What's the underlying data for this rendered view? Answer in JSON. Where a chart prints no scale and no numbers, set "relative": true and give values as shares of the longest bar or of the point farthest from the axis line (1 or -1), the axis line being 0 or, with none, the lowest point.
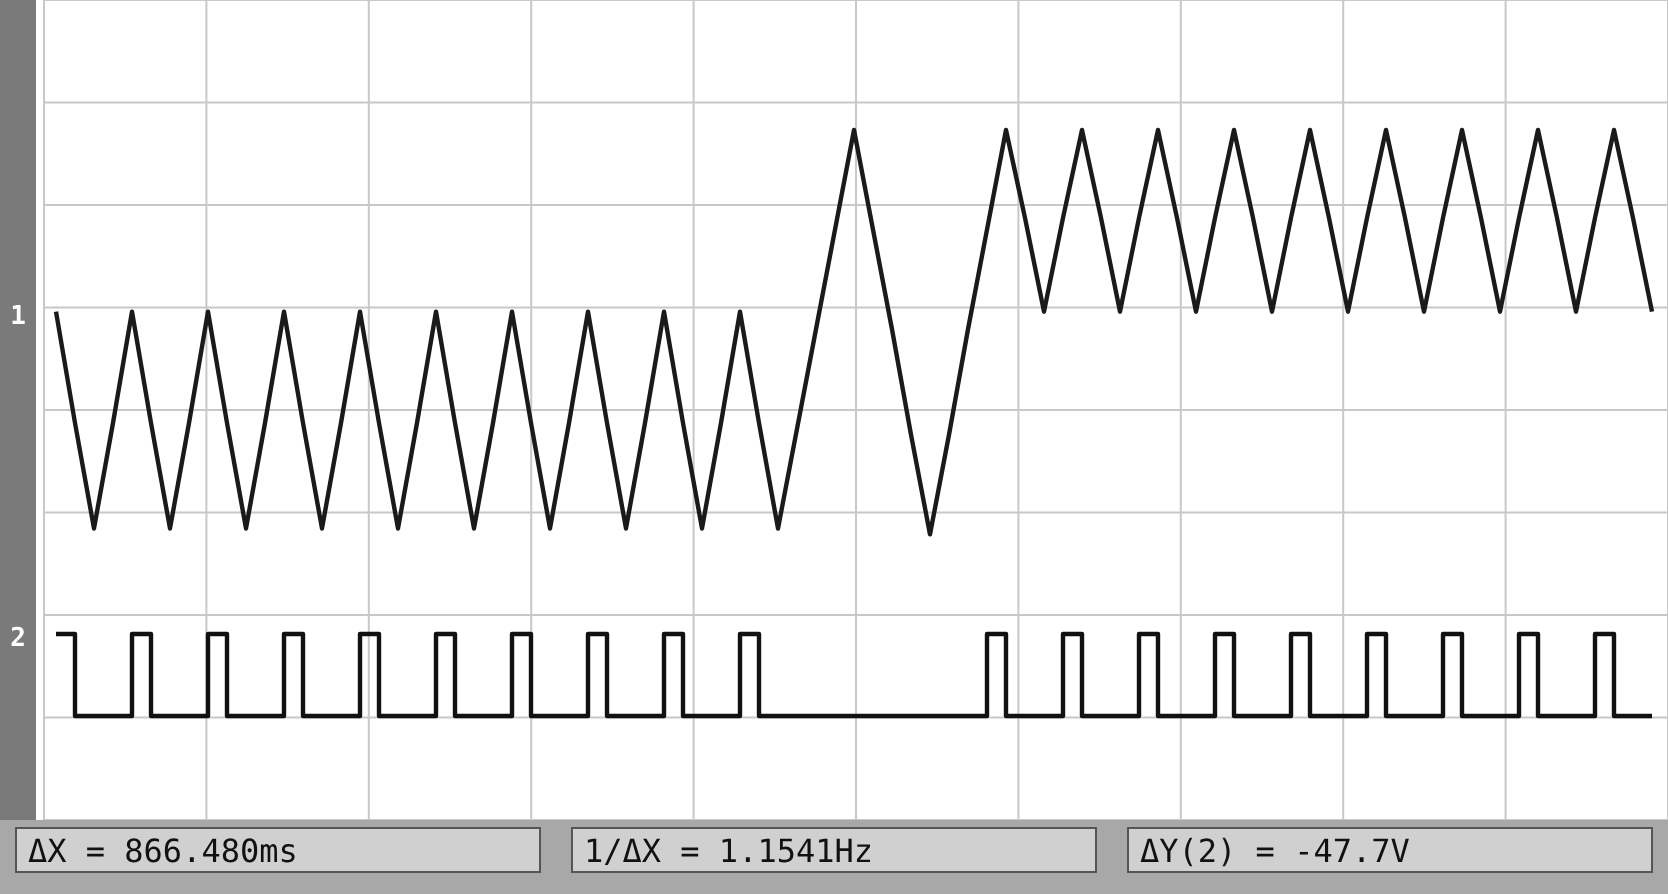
{
  "chart_data": {
    "type": "line",
    "relative": true,
    "grid": true,
    "legend": false,
    "marker": "none",
    "tick_labels": false,
    "categories": [
      null,
      null,
      null,
      null,
      null,
      null,
      null,
      null,
      null,
      null,
      null,
      null,
      null,
      null,
      null,
      null,
      null,
      null,
      null,
      null,
      null,
      null,
      null,
      null,
      null,
      null,
      null,
      null,
      null,
      null,
      null,
      null,
      null,
      null,
      null,
      null,
      null,
      null,
      null,
      null,
      null,
      null,
      null,
      null,
      null,
      null,
      null,
      null,
      null,
      null,
      null,
      null,
      null,
      null,
      null,
      null,
      null,
      null,
      null,
      null,
      null,
      null,
      null,
      null,
      null,
      null,
      null,
      null,
      null,
      null,
      null,
      null,
      null,
      null,
      null,
      null,
      null,
      null,
      null,
      null,
      null,
      null,
      null,
      null,
      null
    ],
    "series": [
      {
        "name": "1",
        "color": "#1a1a1a",
        "values": [
          0.69,
          0.5,
          0.32,
          0.5,
          0.69,
          0.5,
          0.32,
          0.5,
          0.69,
          0.5,
          0.32,
          0.5,
          0.69,
          0.5,
          0.32,
          0.5,
          0.69,
          0.5,
          0.32,
          0.5,
          0.69,
          0.5,
          0.32,
          0.5,
          0.69,
          0.5,
          0.32,
          0.5,
          0.69,
          0.5,
          0.32,
          0.5,
          0.69,
          0.5,
          0.32,
          0.5,
          0.69,
          0.5,
          0.32,
          0.49,
          0.66,
          0.83,
          1,
          0.83,
          0.66,
          0.48,
          0.31,
          0.48,
          0.66,
          0.83,
          1,
          0.85,
          0.69,
          0.85,
          1,
          0.85,
          0.69,
          0.85,
          1,
          0.85,
          0.69,
          0.85,
          1,
          0.85,
          0.69,
          0.85,
          1,
          0.85,
          0.69,
          0.85,
          1,
          0.85,
          0.69,
          0.85,
          1,
          0.85,
          0.69,
          0.85,
          1,
          0.85,
          0.69,
          0.85,
          1,
          0.85,
          0.69
        ]
      },
      {
        "name": "2",
        "type": "step",
        "color": "#111111",
        "values": [
          0.14,
          0,
          0,
          0,
          0.14,
          0,
          0,
          0,
          0.14,
          0,
          0,
          0,
          0.14,
          0,
          0,
          0,
          0.14,
          0,
          0,
          0,
          0.14,
          0,
          0,
          0,
          0.14,
          0,
          0,
          0,
          0.14,
          0,
          0,
          0,
          0.14,
          0,
          0,
          0,
          0.14,
          0,
          0,
          0,
          0,
          0,
          0,
          0,
          0,
          0,
          0,
          0,
          0,
          0.14,
          0,
          0,
          0,
          0.14,
          0,
          0,
          0,
          0.14,
          0,
          0,
          0,
          0.14,
          0,
          0,
          0,
          0.14,
          0,
          0,
          0,
          0.14,
          0,
          0,
          0,
          0.14,
          0,
          0,
          0,
          0.14,
          0,
          0,
          0,
          0.14,
          0,
          0,
          0
        ]
      }
    ],
    "annotations": [
      "ΔX = 866.480ms",
      "1/ΔX = 1.1541Hz",
      "ΔY(2) = -47.7V"
    ]
  }
}
